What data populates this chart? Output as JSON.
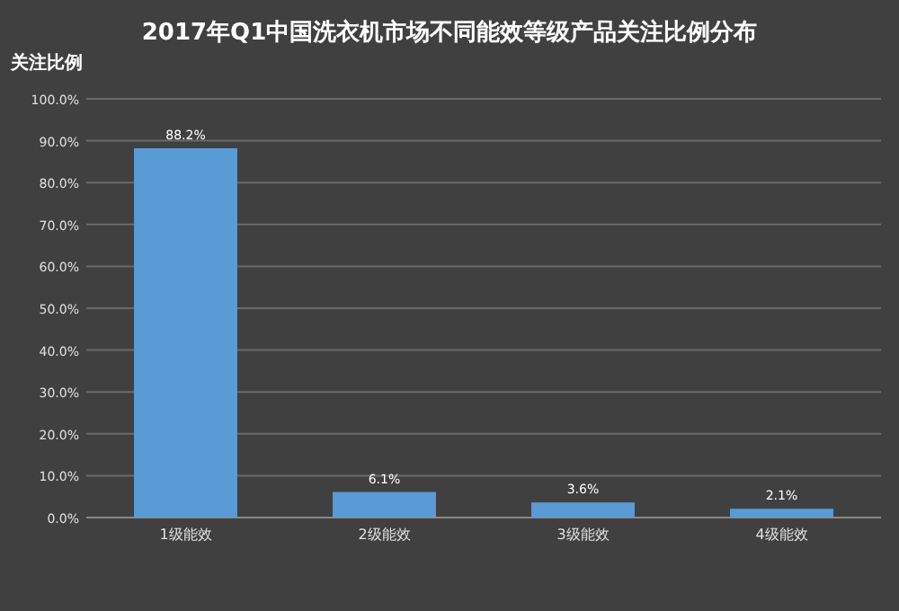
{
  "chart_data": {
    "type": "bar",
    "title": "2017年Q1中国洗衣机市场不同能效等级产品关注比例分布",
    "ylabel": "关注比例",
    "categories": [
      "1级能效",
      "2级能效",
      "3级能效",
      "4级能效"
    ],
    "values": [
      88.2,
      6.1,
      3.6,
      2.1
    ],
    "value_labels": [
      "88.2%",
      "6.1%",
      "3.6%",
      "2.1%"
    ],
    "color": "#5b9bd5",
    "ylim": [
      0,
      100
    ],
    "yticks": [
      {
        "value": 0,
        "label": "0.0%"
      },
      {
        "value": 10,
        "label": "10.0%"
      },
      {
        "value": 20,
        "label": "20.0%"
      },
      {
        "value": 30,
        "label": "30.0%"
      },
      {
        "value": 40,
        "label": "40.0%"
      },
      {
        "value": 50,
        "label": "50.0%"
      },
      {
        "value": 60,
        "label": "60.0%"
      },
      {
        "value": 70,
        "label": "70.0%"
      },
      {
        "value": 80,
        "label": "80.0%"
      },
      {
        "value": 90,
        "label": "90.0%"
      },
      {
        "value": 100,
        "label": "100.0%"
      }
    ],
    "grid": "y"
  }
}
